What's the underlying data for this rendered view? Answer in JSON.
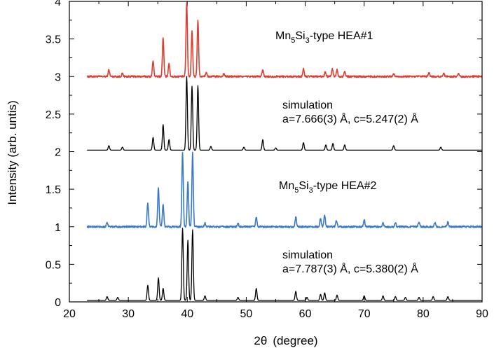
{
  "chart_data": {
    "type": "line",
    "title": "",
    "xlabel": "2θ (degree)",
    "xlabel_parts": {
      "symbol": "2θ",
      "unit": "(degree)"
    },
    "ylabel": "Intensity (arb. untis)",
    "xlim": [
      20,
      90
    ],
    "ylim": [
      0,
      4
    ],
    "xticks": [
      20,
      30,
      40,
      50,
      60,
      70,
      80,
      90
    ],
    "yticks": [
      0,
      0.5,
      1,
      1.5,
      2,
      2.5,
      3,
      3.5,
      4
    ],
    "ytick_labels": [
      "0",
      "0.5",
      "1",
      "1.5",
      "2",
      "2.5",
      "3",
      "3.5",
      "4"
    ],
    "grid": false,
    "series": [
      {
        "label_parts": {
          "base1": "Mn",
          "sub1": "5",
          "base2": "Si",
          "sub2": "3",
          "rest": "-type HEA#1"
        },
        "color": "#e03c31",
        "baseline": 3.0,
        "noise": 0.012,
        "peaks": [
          [
            26.7,
            0.09
          ],
          [
            29.0,
            0.04
          ],
          [
            34.2,
            0.21
          ],
          [
            35.9,
            0.52
          ],
          [
            36.9,
            0.18
          ],
          [
            39.9,
            0.99
          ],
          [
            40.8,
            0.6
          ],
          [
            41.8,
            0.75
          ],
          [
            43.2,
            0.05
          ],
          [
            46.2,
            0.04
          ],
          [
            52.8,
            0.09
          ],
          [
            59.7,
            0.1
          ],
          [
            63.4,
            0.06
          ],
          [
            64.6,
            0.1
          ],
          [
            65.4,
            0.09
          ],
          [
            66.7,
            0.07
          ],
          [
            75.0,
            0.04
          ],
          [
            81.0,
            0.05
          ],
          [
            83.5,
            0.05
          ],
          [
            86.0,
            0.04
          ]
        ]
      },
      {
        "label": "simulation",
        "params": "a=7.666(3) Å, c=5.247(2) Å",
        "color": "#000000",
        "baseline": 2.02,
        "noise": 0.0,
        "peaks": [
          [
            26.7,
            0.06
          ],
          [
            29.0,
            0.04
          ],
          [
            34.2,
            0.17
          ],
          [
            35.9,
            0.34
          ],
          [
            36.9,
            0.14
          ],
          [
            39.9,
            0.98
          ],
          [
            40.8,
            0.85
          ],
          [
            41.8,
            0.86
          ],
          [
            44.0,
            0.05
          ],
          [
            49.6,
            0.04
          ],
          [
            52.8,
            0.14
          ],
          [
            55.0,
            0.03
          ],
          [
            59.7,
            0.1
          ],
          [
            63.5,
            0.07
          ],
          [
            64.7,
            0.09
          ],
          [
            66.7,
            0.07
          ],
          [
            75.0,
            0.06
          ],
          [
            83.0,
            0.04
          ]
        ]
      },
      {
        "label_parts": {
          "base1": "Mn",
          "sub1": "5",
          "base2": "Si",
          "sub2": "3",
          "rest": "-type HEA#2"
        },
        "color": "#3a78c8",
        "baseline": 1.0,
        "noise": 0.012,
        "peaks": [
          [
            26.4,
            0.06
          ],
          [
            33.3,
            0.32
          ],
          [
            35.1,
            0.52
          ],
          [
            35.9,
            0.3
          ],
          [
            39.2,
            0.99
          ],
          [
            40.1,
            0.6
          ],
          [
            40.9,
            0.98
          ],
          [
            43.0,
            0.05
          ],
          [
            48.6,
            0.04
          ],
          [
            51.7,
            0.13
          ],
          [
            58.4,
            0.13
          ],
          [
            62.6,
            0.11
          ],
          [
            63.3,
            0.15
          ],
          [
            65.3,
            0.08
          ],
          [
            70.0,
            0.09
          ],
          [
            73.2,
            0.05
          ],
          [
            75.3,
            0.05
          ],
          [
            79.3,
            0.06
          ],
          [
            82.0,
            0.05
          ],
          [
            84.2,
            0.07
          ]
        ]
      },
      {
        "label": "simulation",
        "params": "a=7.787(3) Å, c=5.380(2) Å",
        "color": "#000000",
        "baseline": 0.02,
        "noise": 0.0,
        "peaks": [
          [
            26.4,
            0.05
          ],
          [
            28.2,
            0.04
          ],
          [
            33.3,
            0.2
          ],
          [
            35.1,
            0.3
          ],
          [
            35.9,
            0.16
          ],
          [
            39.2,
            0.96
          ],
          [
            40.1,
            0.8
          ],
          [
            40.9,
            0.94
          ],
          [
            43.0,
            0.06
          ],
          [
            48.6,
            0.04
          ],
          [
            51.7,
            0.16
          ],
          [
            58.4,
            0.12
          ],
          [
            60.3,
            0.04
          ],
          [
            62.6,
            0.08
          ],
          [
            63.3,
            0.1
          ],
          [
            65.4,
            0.07
          ],
          [
            70.0,
            0.06
          ],
          [
            73.2,
            0.06
          ],
          [
            75.3,
            0.05
          ],
          [
            77.0,
            0.04
          ],
          [
            79.3,
            0.04
          ],
          [
            81.7,
            0.05
          ],
          [
            84.2,
            0.05
          ]
        ]
      }
    ]
  }
}
